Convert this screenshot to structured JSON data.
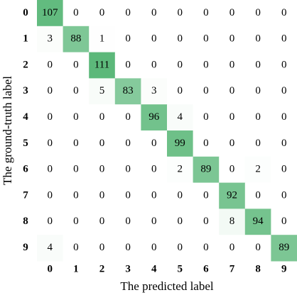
{
  "chart_data": {
    "type": "heatmap",
    "x_label": "The predicted label",
    "y_label": "The ground-truth label",
    "x_categories": [
      "0",
      "1",
      "2",
      "3",
      "4",
      "5",
      "6",
      "7",
      "8",
      "9"
    ],
    "y_categories": [
      "0",
      "1",
      "2",
      "3",
      "4",
      "5",
      "6",
      "7",
      "8",
      "9"
    ],
    "colors": [
      "#ffffff",
      "#5cb87a"
    ],
    "values": [
      [
        107,
        0,
        0,
        0,
        0,
        0,
        0,
        0,
        0,
        0
      ],
      [
        3,
        88,
        1,
        0,
        0,
        0,
        0,
        0,
        0,
        0
      ],
      [
        0,
        0,
        111,
        0,
        0,
        0,
        0,
        0,
        0,
        0
      ],
      [
        0,
        0,
        5,
        83,
        3,
        0,
        0,
        0,
        0,
        0
      ],
      [
        0,
        0,
        0,
        0,
        96,
        4,
        0,
        0,
        0,
        0
      ],
      [
        0,
        0,
        0,
        0,
        0,
        99,
        0,
        0,
        0,
        0
      ],
      [
        0,
        0,
        0,
        0,
        0,
        2,
        89,
        0,
        2,
        0
      ],
      [
        0,
        0,
        0,
        0,
        0,
        0,
        0,
        92,
        0,
        0
      ],
      [
        0,
        0,
        0,
        0,
        0,
        0,
        0,
        8,
        94,
        0
      ],
      [
        4,
        0,
        0,
        0,
        0,
        0,
        0,
        0,
        0,
        89
      ]
    ]
  }
}
